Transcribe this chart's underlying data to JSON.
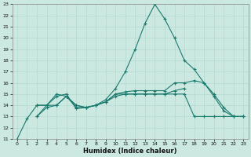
{
  "title": "",
  "xlabel": "Humidex (Indice chaleur)",
  "ylabel": "",
  "xlim": [
    -0.5,
    23.5
  ],
  "ylim": [
    11,
    23
  ],
  "yticks": [
    11,
    12,
    13,
    14,
    15,
    16,
    17,
    18,
    19,
    20,
    21,
    22,
    23
  ],
  "xticks": [
    0,
    1,
    2,
    3,
    4,
    5,
    6,
    7,
    8,
    9,
    10,
    11,
    12,
    13,
    14,
    15,
    16,
    17,
    18,
    19,
    20,
    21,
    22,
    23
  ],
  "bg_color": "#cce9e1",
  "line_color": "#1a7a6e",
  "grid_color": "#b0d4cc",
  "line1_x": [
    0,
    1,
    2,
    3,
    4,
    5,
    6,
    7,
    8,
    9,
    10,
    11,
    12,
    13,
    14,
    15,
    16,
    17,
    18,
    19,
    20,
    21,
    22,
    23
  ],
  "line1_y": [
    11.0,
    12.8,
    14.0,
    14.0,
    14.8,
    15.0,
    13.7,
    13.8,
    14.0,
    14.5,
    15.5,
    17.0,
    19.0,
    21.3,
    23.0,
    21.7,
    20.0,
    18.0,
    17.2,
    16.0,
    14.8,
    13.5,
    13.0,
    13.0
  ],
  "line2_x": [
    2,
    3,
    4,
    5,
    6,
    7,
    8,
    9,
    10,
    11,
    12,
    13,
    14,
    15,
    16,
    17,
    18,
    19,
    20,
    21,
    22,
    23
  ],
  "line2_y": [
    14.0,
    14.0,
    15.0,
    14.8,
    13.8,
    13.8,
    14.0,
    14.3,
    15.0,
    15.2,
    15.3,
    15.3,
    15.3,
    15.3,
    16.0,
    16.0,
    16.2,
    16.0,
    15.0,
    13.8,
    13.0,
    13.0
  ],
  "line3_x": [
    2,
    3,
    4,
    5,
    6,
    7,
    8,
    9,
    10,
    11,
    12,
    13,
    14,
    15,
    16,
    17
  ],
  "line3_y": [
    13.0,
    13.8,
    14.0,
    14.8,
    14.0,
    13.8,
    14.0,
    14.3,
    14.8,
    15.0,
    15.0,
    15.0,
    15.0,
    15.0,
    15.3,
    15.5
  ],
  "line4_x": [
    2,
    3,
    4,
    5,
    6,
    7,
    8,
    9,
    10,
    11,
    12,
    13,
    14,
    15,
    16,
    17,
    18,
    19,
    20,
    21,
    22,
    23
  ],
  "line4_y": [
    13.0,
    14.0,
    14.0,
    14.8,
    14.0,
    13.8,
    14.0,
    14.3,
    15.0,
    15.0,
    15.0,
    15.0,
    15.0,
    15.0,
    15.0,
    15.0,
    13.0,
    13.0,
    13.0,
    13.0,
    13.0,
    13.0
  ]
}
